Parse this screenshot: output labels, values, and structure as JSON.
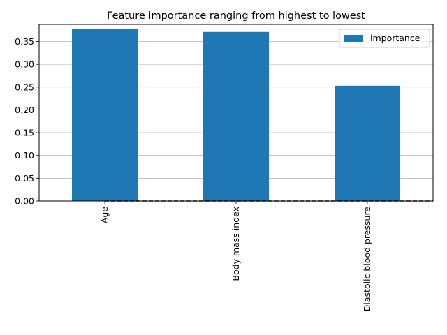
{
  "chart_data": {
    "type": "bar",
    "title": "Feature importance ranging from highest to lowest",
    "categories": [
      "Age",
      "Body mass index",
      "Diastolic blood pressure"
    ],
    "series": [
      {
        "name": "importance",
        "values": [
          0.378,
          0.371,
          0.253
        ]
      }
    ],
    "xlabel": "",
    "ylabel": "",
    "ylim": [
      0,
      0.3875
    ],
    "yticks": [
      0.0,
      0.05,
      0.1,
      0.15,
      0.2,
      0.25,
      0.3,
      0.35
    ],
    "ytick_labels": [
      "0.00",
      "0.05",
      "0.10",
      "0.15",
      "0.20",
      "0.25",
      "0.30",
      "0.35"
    ],
    "grid": "horizontal",
    "legend_position": "top-right",
    "colors": {
      "bar": "#1f77b4",
      "grid": "#b0b0b0",
      "baseline": "#000000"
    },
    "reference_line": {
      "y": 0,
      "style": "dashed"
    }
  }
}
